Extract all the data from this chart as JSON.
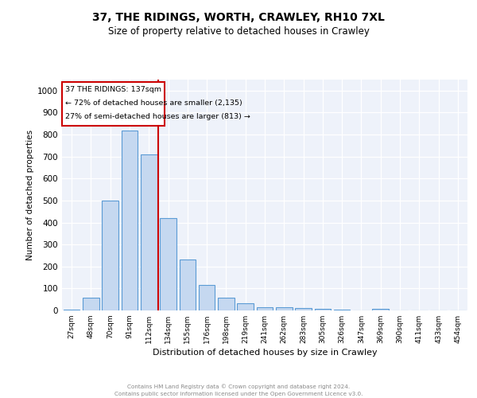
{
  "title": "37, THE RIDINGS, WORTH, CRAWLEY, RH10 7XL",
  "subtitle": "Size of property relative to detached houses in Crawley",
  "xlabel": "Distribution of detached houses by size in Crawley",
  "ylabel": "Number of detached properties",
  "bar_labels": [
    "27sqm",
    "48sqm",
    "70sqm",
    "91sqm",
    "112sqm",
    "134sqm",
    "155sqm",
    "176sqm",
    "198sqm",
    "219sqm",
    "241sqm",
    "262sqm",
    "283sqm",
    "305sqm",
    "326sqm",
    "347sqm",
    "369sqm",
    "390sqm",
    "411sqm",
    "433sqm",
    "454sqm"
  ],
  "bar_values": [
    5,
    58,
    500,
    820,
    710,
    420,
    230,
    117,
    57,
    32,
    15,
    13,
    10,
    6,
    5,
    0,
    8,
    0,
    0,
    0,
    0
  ],
  "bar_color": "#c5d8f0",
  "bar_edge_color": "#5b9bd5",
  "annotation_line1": "37 THE RIDINGS: 137sqm",
  "annotation_line2": "← 72% of detached houses are smaller (2,135)",
  "annotation_line3": "27% of semi-detached houses are larger (813) →",
  "vline_color": "#cc0000",
  "box_edge_color": "#cc0000",
  "ylim": [
    0,
    1050
  ],
  "yticks": [
    0,
    100,
    200,
    300,
    400,
    500,
    600,
    700,
    800,
    900,
    1000
  ],
  "footer_line1": "Contains HM Land Registry data © Crown copyright and database right 2024.",
  "footer_line2": "Contains public sector information licensed under the Open Government Licence v3.0.",
  "plot_bg_color": "#eef2fa",
  "grid_color": "#ffffff"
}
